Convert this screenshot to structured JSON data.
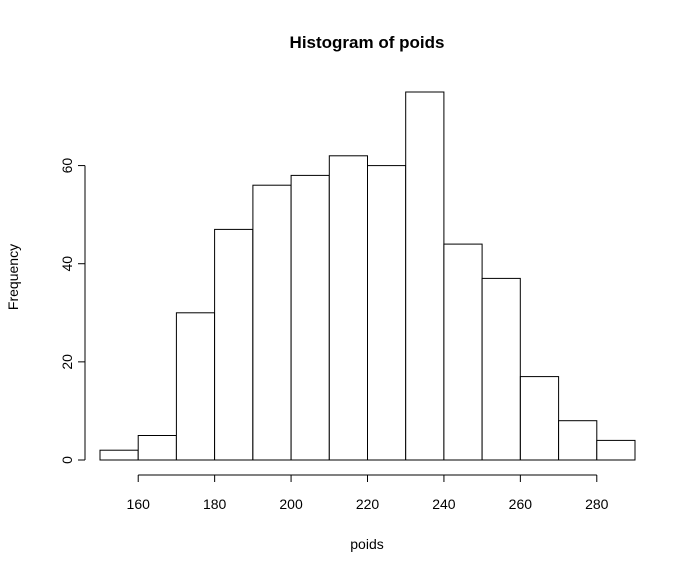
{
  "chart_data": {
    "type": "bar",
    "title": "Histogram of poids",
    "xlabel": "poids",
    "ylabel": "Frequency",
    "bins": [
      {
        "from": 150,
        "to": 160,
        "count": 2
      },
      {
        "from": 160,
        "to": 170,
        "count": 5
      },
      {
        "from": 170,
        "to": 180,
        "count": 30
      },
      {
        "from": 180,
        "to": 190,
        "count": 47
      },
      {
        "from": 190,
        "to": 200,
        "count": 56
      },
      {
        "from": 200,
        "to": 210,
        "count": 58
      },
      {
        "from": 210,
        "to": 220,
        "count": 62
      },
      {
        "from": 220,
        "to": 230,
        "count": 60
      },
      {
        "from": 230,
        "to": 240,
        "count": 75
      },
      {
        "from": 240,
        "to": 250,
        "count": 44
      },
      {
        "from": 250,
        "to": 260,
        "count": 37
      },
      {
        "from": 260,
        "to": 270,
        "count": 17
      },
      {
        "from": 270,
        "to": 280,
        "count": 8
      },
      {
        "from": 280,
        "to": 290,
        "count": 4
      }
    ],
    "x_ticks": [
      160,
      180,
      200,
      220,
      240,
      260,
      280
    ],
    "x_tick_labels": [
      "160",
      "180",
      "200",
      "220",
      "240",
      "260",
      "280"
    ],
    "y_ticks": [
      0,
      20,
      40,
      60
    ],
    "y_tick_labels": [
      "0",
      "20",
      "40",
      "60"
    ],
    "xlim": [
      150,
      290
    ],
    "ylim": [
      0,
      75
    ],
    "grid": false,
    "bar_fill": "#ffffff",
    "bar_stroke": "#000000"
  }
}
